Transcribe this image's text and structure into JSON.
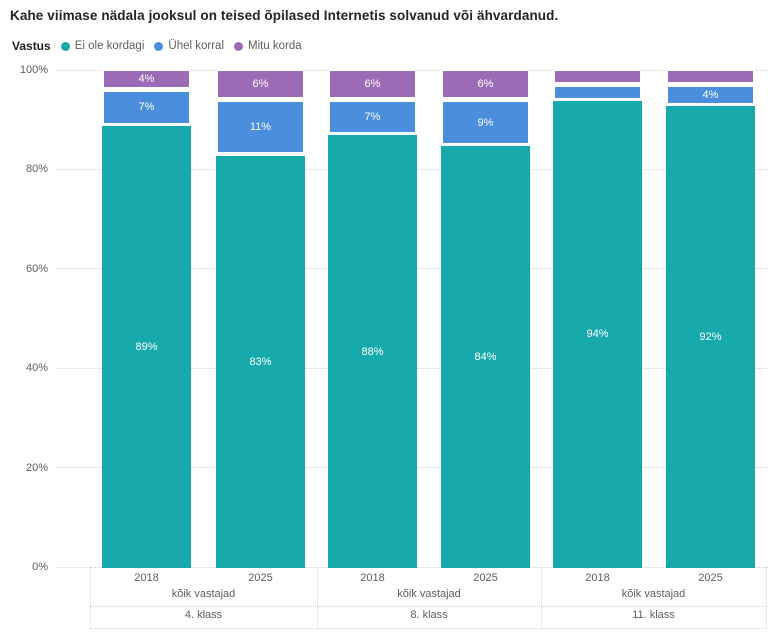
{
  "title": "Kahe viimase nädala jooksul on teised õpilased Internetis solvanud või ähvardanud.",
  "legend": {
    "title": "Vastus",
    "items": [
      {
        "label": "Ei ole kordagi",
        "color": "#18A9AC"
      },
      {
        "label": "Ühel korral",
        "color": "#4A8EDD"
      },
      {
        "label": "Mitu korda",
        "color": "#9B6BB5"
      }
    ]
  },
  "chart_data": {
    "type": "bar",
    "subtype": "stacked-100-percent",
    "title": "Kahe viimase nädala jooksul on teised õpilased Internetis solvanud või ähvardanud.",
    "legend_title": "Vastus",
    "legend_position": "top",
    "grid": "dotted-horizontal",
    "ylim": [
      0,
      100
    ],
    "y_ticks": [
      "100%",
      "80%",
      "60%",
      "40%",
      "20%",
      "0%"
    ],
    "series": [
      {
        "name": "Ei ole kordagi",
        "color": "#18A9AC"
      },
      {
        "name": "Ühel korral",
        "color": "#4A8EDD"
      },
      {
        "name": "Mitu korda",
        "color": "#9B6BB5"
      }
    ],
    "stack_order_bottom_to_top": [
      "Ei ole kordagi",
      "Ühel korral",
      "Mitu korda"
    ],
    "groups": [
      {
        "class_label": "4. klass",
        "subgroup_label": "kõik vastajad",
        "bars": [
          {
            "year": "2018",
            "segments": [
              {
                "series": "Ei ole kordagi",
                "value": 89,
                "label": "89%"
              },
              {
                "series": "Ühel korral",
                "value": 7,
                "label": "7%"
              },
              {
                "series": "Mitu korda",
                "value": 4,
                "label": "4%"
              }
            ]
          },
          {
            "year": "2025",
            "segments": [
              {
                "series": "Ei ole kordagi",
                "value": 83,
                "label": "83%"
              },
              {
                "series": "Ühel korral",
                "value": 11,
                "label": "11%"
              },
              {
                "series": "Mitu korda",
                "value": 6,
                "label": "6%"
              }
            ]
          }
        ]
      },
      {
        "class_label": "8. klass",
        "subgroup_label": "kõik vastajad",
        "bars": [
          {
            "year": "2018",
            "segments": [
              {
                "series": "Ei ole kordagi",
                "value": 88,
                "label": "88%"
              },
              {
                "series": "Ühel korral",
                "value": 7,
                "label": "7%"
              },
              {
                "series": "Mitu korda",
                "value": 6,
                "label": "6%"
              }
            ]
          },
          {
            "year": "2025",
            "segments": [
              {
                "series": "Ei ole kordagi",
                "value": 84,
                "label": "84%"
              },
              {
                "series": "Ühel korral",
                "value": 9,
                "label": "9%"
              },
              {
                "series": "Mitu korda",
                "value": 6,
                "label": "6%"
              }
            ]
          }
        ]
      },
      {
        "class_label": "11. klass",
        "subgroup_label": "kõik vastajad",
        "bars": [
          {
            "year": "2018",
            "segments": [
              {
                "series": "Ei ole kordagi",
                "value": 94,
                "label": "94%"
              },
              {
                "series": "Ühel korral",
                "value": 3,
                "label": ""
              },
              {
                "series": "Mitu korda",
                "value": 3,
                "label": ""
              }
            ]
          },
          {
            "year": "2025",
            "segments": [
              {
                "series": "Ei ole kordagi",
                "value": 92,
                "label": "92%"
              },
              {
                "series": "Ühel korral",
                "value": 4,
                "label": "4%"
              },
              {
                "series": "Mitu korda",
                "value": 3,
                "label": ""
              }
            ]
          }
        ]
      }
    ]
  }
}
